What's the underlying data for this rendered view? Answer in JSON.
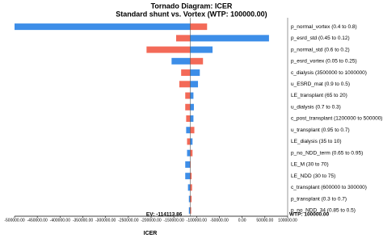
{
  "chart_data": {
    "type": "tornado",
    "title": "Tornado Diagram: ICER",
    "subtitle": "Standard shunt vs. Vortex (WTP: 100000.00)",
    "x_label": "ICER",
    "colors": [
      "#3d8ee8",
      "#f36a58"
    ],
    "ev": {
      "value": -114113.86,
      "label": "EV: -114113.86"
    },
    "wtp": {
      "value": 100000,
      "label": "WTP: 100000.00"
    },
    "xlim": [
      -500000,
      100000
    ],
    "xticks": [
      {
        "value": -500000,
        "label": "-500000.00"
      },
      {
        "value": -450000,
        "label": "-450000.00"
      },
      {
        "value": -400000,
        "label": "-400000.00"
      },
      {
        "value": -350000,
        "label": "-350000.00"
      },
      {
        "value": -300000,
        "label": "-300000.00"
      },
      {
        "value": -250000,
        "label": "-250000.00"
      },
      {
        "value": -200000,
        "label": "-200000.00"
      },
      {
        "value": -150000,
        "label": "-150000.00"
      },
      {
        "value": -100000,
        "label": "-100000.00"
      },
      {
        "value": -50000,
        "label": "-50000.00"
      },
      {
        "value": 0,
        "label": "0.00"
      },
      {
        "value": 50000,
        "label": "50000.00"
      },
      {
        "value": 100000,
        "label": "100000.00"
      }
    ],
    "rows": [
      {
        "label": "p_normal_vortex (0.4 to 0.8)",
        "values": [
          -500000,
          -77000
        ]
      },
      {
        "label": "p_esrd_std (0.45 to 0.12)",
        "values": [
          59000,
          -145000
        ]
      },
      {
        "label": "p_normal_std (0.6 to 0.2)",
        "values": [
          -65000,
          -210000
        ]
      },
      {
        "label": "p_esrd_vortex (0.05 to 0.25)",
        "values": [
          -155000,
          -86000
        ]
      },
      {
        "label": "c_dialysis (3500000 to 1000000)",
        "values": [
          -93000,
          -134000
        ]
      },
      {
        "label": "u_ESRD_mat (0.9 to 0.5)",
        "values": [
          -97000,
          -138000
        ]
      },
      {
        "label": "LE_transplant (65 to 20)",
        "values": [
          -107000,
          -125000
        ]
      },
      {
        "label": "u_dialysis (0.7 to 0.3)",
        "values": [
          -106000,
          -125000
        ]
      },
      {
        "label": "c_post_transplant (1200000 to 500000)",
        "values": [
          -107000,
          -123000
        ]
      },
      {
        "label": "u_transplant (0.95 to 0.7)",
        "values": [
          -123000,
          -105000
        ]
      },
      {
        "label": "LE_dialysis (35 to 10)",
        "values": [
          -109000,
          -121000
        ]
      },
      {
        "label": "p_no_NDD_term (0.65 to 0.95)",
        "values": [
          -121000,
          -109000
        ]
      },
      {
        "label": "LE_M (30 to 70)",
        "values": [
          -125000,
          -113000
        ]
      },
      {
        "label": "LE_NDD (30 to 75)",
        "values": [
          -125000,
          -111000
        ]
      },
      {
        "label": "c_transplant (600000 to 300000)",
        "values": [
          -119000,
          -110000
        ]
      },
      {
        "label": "p_transplant (0.3 to 0.7)",
        "values": [
          -117000,
          -111000
        ]
      },
      {
        "label": "p_no_NDD_34 (0.85 to 0.5)",
        "values": [
          -117000,
          -112000
        ]
      }
    ]
  }
}
